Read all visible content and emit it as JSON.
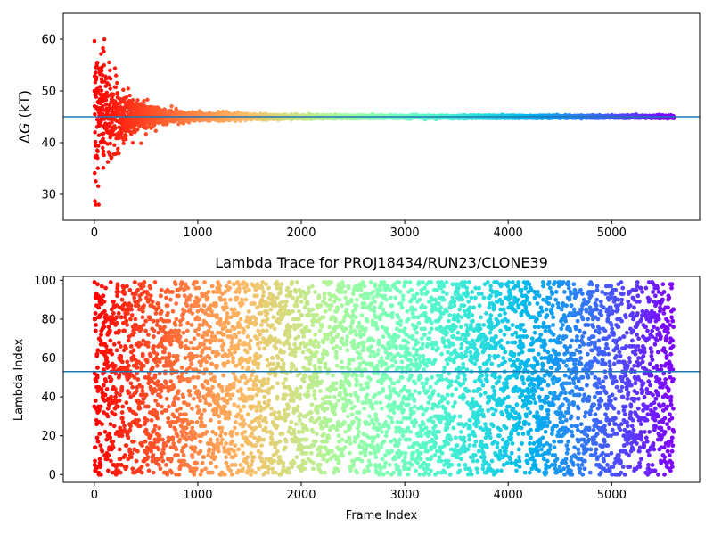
{
  "chart_data": [
    {
      "type": "scatter",
      "title": "",
      "xlabel": "",
      "ylabel_symbol": "Δ",
      "ylabel_var": "G",
      "ylabel_unit": " (kT)",
      "xlim": [
        -300,
        5850
      ],
      "ylim": [
        25,
        65
      ],
      "xticks": [
        0,
        1000,
        2000,
        3000,
        4000,
        5000
      ],
      "yticks": [
        30,
        40,
        50,
        60
      ],
      "hline": 45.0,
      "hline_color": "#1f77b4",
      "colormap": "rainbow (red → violet with frame index)",
      "series": [
        {
          "n_points": 5600,
          "x_range": [
            0,
            5600
          ],
          "description": "running free-energy estimate; wide spread (28–60) in first ~300 frames, converging to ~45 by ~1000 and flat thereafter"
        }
      ]
    },
    {
      "type": "scatter",
      "title": "Lambda Trace for PROJ18434/RUN23/CLONE39",
      "xlabel": "Frame Index",
      "ylabel": "Lambda Index",
      "xlim": [
        -300,
        5850
      ],
      "ylim": [
        -4,
        102
      ],
      "xticks": [
        0,
        1000,
        2000,
        3000,
        4000,
        5000
      ],
      "yticks": [
        0,
        20,
        40,
        60,
        80,
        100
      ],
      "hline": 53,
      "hline_color": "#1f77b4",
      "colormap": "rainbow (red → violet with frame index)",
      "series": [
        {
          "n_points": 5600,
          "x_range": [
            0,
            5600
          ],
          "y_range": [
            0,
            99
          ],
          "description": "lambda index per frame, roughly uniform over 0–99"
        }
      ]
    }
  ]
}
